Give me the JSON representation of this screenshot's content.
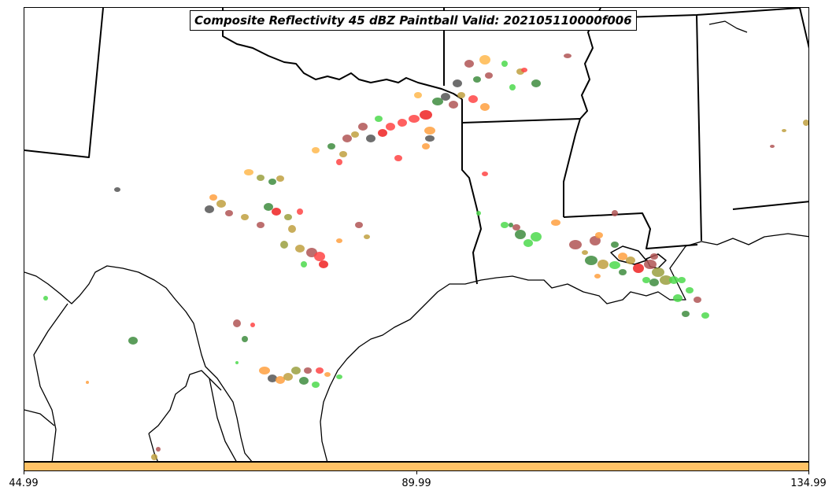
{
  "title": "Composite Reflectivity 45 dBZ Paintball Valid: 202105110000f006",
  "colorbar": {
    "color": "#ffc266",
    "ticks": [
      "44.99",
      "89.99",
      "134.99"
    ]
  },
  "palette": [
    "#ff4444",
    "#ee2222",
    "#4cd94c",
    "#3e8c3e",
    "#555555",
    "#b05555",
    "#c0a040",
    "#ffa040",
    "#ffb84d",
    "#9aa040"
  ]
}
